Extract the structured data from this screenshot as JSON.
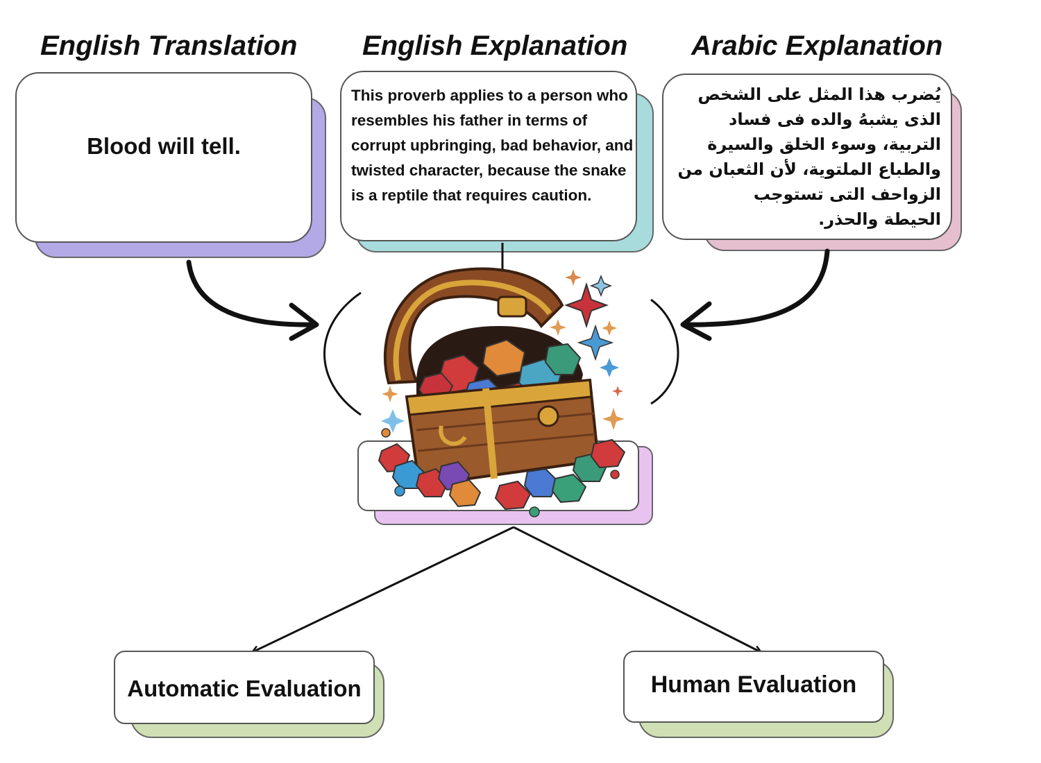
{
  "headings": {
    "english_translation": "English Translation",
    "english_explanation": "English Explanation",
    "arabic_explanation": "Arabic Explanation"
  },
  "cards": {
    "translation_text": "Blood will tell.",
    "english_explanation_text": "This proverb applies to a person who resembles his father in terms of corrupt upbringing, bad behavior, and twisted character, because the snake is a reptile that requires caution.",
    "arabic_explanation_lines": [
      "يُضرب هذا المثل على الشخص",
      "الذى يشبهُ والده فى فساد",
      "التربية، وسوء الخلق والسيرة",
      "والطباع الملتوية، لأن الثعبان من",
      "الزواحف التى تستوجب",
      "الحيطة والحذر."
    ]
  },
  "evaluations": {
    "automatic": "Automatic Evaluation",
    "human": "Human Evaluation"
  },
  "colors": {
    "translation_shadow": "#b3a9e6",
    "english_explanation_shadow": "#a8dcdc",
    "arabic_explanation_shadow": "#e6bfcf",
    "center_shadow": "#e8c3ef",
    "evaluation_shadow": "#cfe0b4",
    "wood_dark": "#6b3a1c",
    "wood_light": "#b06a33",
    "gold": "#d9a53b"
  },
  "icons": {
    "center": "treasure-chest-icon"
  }
}
